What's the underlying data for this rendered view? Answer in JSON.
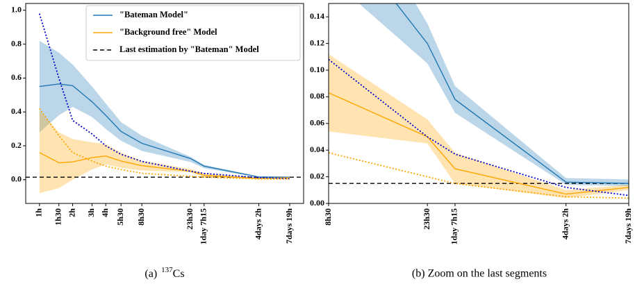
{
  "chart_data": [
    {
      "type": "line",
      "xscale": "log",
      "legend": "upper right",
      "x": [
        1,
        1.5,
        2,
        3,
        4,
        5.5,
        8.5,
        23.5,
        31.25,
        98,
        187
      ],
      "xlim": [
        0.75,
        250
      ],
      "xticks": [
        {
          "value": 1,
          "label": "1h"
        },
        {
          "value": 1.5,
          "label": "1h30"
        },
        {
          "value": 2,
          "label": "2h"
        },
        {
          "value": 3,
          "label": "3h"
        },
        {
          "value": 4,
          "label": "4h"
        },
        {
          "value": 5.5,
          "label": "5h30"
        },
        {
          "value": 8.5,
          "label": "8h30"
        },
        {
          "value": 23.5,
          "label": "23h30"
        },
        {
          "value": 31.25,
          "label": "1day 7h15"
        },
        {
          "value": 98,
          "label": "4days 2h"
        },
        {
          "value": 187,
          "label": "7days 19h"
        }
      ],
      "ylim": [
        -0.14,
        1.04
      ],
      "yticks": [
        {
          "value": 0,
          "label": "0.0"
        },
        0.2,
        0.4,
        0.6,
        0.8,
        {
          "value": 1,
          "label": "1.0"
        }
      ],
      "series": [
        {
          "name": "\"Bateman Model\"",
          "color": "#1f77b4",
          "style": "solid",
          "values": [
            0.55,
            0.565,
            0.555,
            0.46,
            0.38,
            0.285,
            0.215,
            0.125,
            0.08,
            0.016,
            0.015
          ],
          "lower": [
            0.28,
            0.38,
            0.43,
            0.37,
            0.3,
            0.23,
            0.17,
            0.105,
            0.068,
            0.014,
            0.013
          ],
          "upper": [
            0.82,
            0.75,
            0.68,
            0.55,
            0.45,
            0.34,
            0.26,
            0.135,
            0.088,
            0.019,
            0.018
          ]
        },
        {
          "name": "\"Background free\" Model",
          "color": "#ffa500",
          "style": "solid",
          "values": [
            0.16,
            0.1,
            0.105,
            0.13,
            0.14,
            0.11,
            0.083,
            0.05,
            0.026,
            0.007,
            0.012
          ],
          "lower": [
            -0.08,
            -0.05,
            0.0,
            0.06,
            0.09,
            0.07,
            0.054,
            0.045,
            0.015,
            0.004,
            0.01
          ],
          "upper": [
            0.41,
            0.28,
            0.24,
            0.22,
            0.21,
            0.16,
            0.112,
            0.063,
            0.038,
            0.01,
            0.014
          ]
        },
        {
          "color": "#0000cc",
          "style": "dotted",
          "values": [
            0.98,
            0.6,
            0.35,
            0.27,
            0.2,
            0.15,
            0.108,
            0.05,
            0.037,
            0.012,
            0.006
          ]
        },
        {
          "color": "#ffa500",
          "style": "dotted",
          "values": [
            0.42,
            0.26,
            0.16,
            0.11,
            0.08,
            0.06,
            0.038,
            0.02,
            0.015,
            0.005,
            0.004
          ]
        }
      ],
      "reference_line": {
        "name": "Last estimation by \"Bateman\" Model",
        "value": 0.015,
        "color": "#000000"
      },
      "caption": {
        "label": "(a)",
        "isotope_mass": "137",
        "isotope": "Cs"
      }
    },
    {
      "type": "line",
      "xscale": "log",
      "x": [
        8.5,
        23.5,
        31.25,
        98,
        187
      ],
      "xlim": [
        8.5,
        187
      ],
      "xticks": [
        {
          "value": 8.5,
          "label": "8h30"
        },
        {
          "value": 23.5,
          "label": "23h30"
        },
        {
          "value": 31.25,
          "label": "1day 7h15"
        },
        {
          "value": 98,
          "label": "4days 2h"
        },
        {
          "value": 187,
          "label": "7days 19h"
        }
      ],
      "ylim": [
        0,
        0.15
      ],
      "yticks": [
        {
          "value": 0,
          "label": "0.00"
        },
        0.02,
        0.04,
        0.06,
        0.08,
        {
          "value": 0.1,
          "label": "0.10"
        },
        0.12,
        0.14
      ],
      "series": [
        {
          "color": "#1f77b4",
          "style": "solid",
          "values": [
            0.215,
            0.12,
            0.078,
            0.016,
            0.015
          ],
          "lower": [
            0.17,
            0.105,
            0.068,
            0.014,
            0.013
          ],
          "upper": [
            0.26,
            0.135,
            0.088,
            0.019,
            0.018
          ]
        },
        {
          "color": "#ffa500",
          "style": "solid",
          "values": [
            0.083,
            0.05,
            0.026,
            0.007,
            0.012
          ],
          "lower": [
            0.054,
            0.045,
            0.015,
            0.004,
            0.01
          ],
          "upper": [
            0.112,
            0.063,
            0.038,
            0.01,
            0.014
          ]
        },
        {
          "color": "#0000cc",
          "style": "dotted",
          "values": [
            0.108,
            0.05,
            0.037,
            0.012,
            0.006
          ]
        },
        {
          "color": "#ffa500",
          "style": "dotted",
          "values": [
            0.038,
            0.02,
            0.015,
            0.005,
            0.004
          ]
        }
      ],
      "reference_line": {
        "value": 0.015,
        "color": "#000000"
      },
      "caption": {
        "label": "(b) Zoom on the last segments"
      }
    }
  ]
}
